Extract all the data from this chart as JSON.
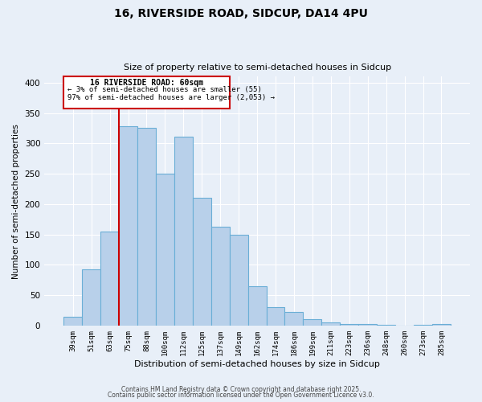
{
  "title_line1": "16, RIVERSIDE ROAD, SIDCUP, DA14 4PU",
  "title_line2": "Size of property relative to semi-detached houses in Sidcup",
  "xlabel": "Distribution of semi-detached houses by size in Sidcup",
  "ylabel": "Number of semi-detached properties",
  "categories": [
    "39sqm",
    "51sqm",
    "63sqm",
    "75sqm",
    "88sqm",
    "100sqm",
    "112sqm",
    "125sqm",
    "137sqm",
    "149sqm",
    "162sqm",
    "174sqm",
    "186sqm",
    "199sqm",
    "211sqm",
    "223sqm",
    "236sqm",
    "248sqm",
    "260sqm",
    "273sqm",
    "285sqm"
  ],
  "values": [
    15,
    93,
    155,
    328,
    325,
    250,
    311,
    210,
    163,
    150,
    65,
    30,
    22,
    10,
    5,
    2,
    2,
    1,
    0,
    1,
    3
  ],
  "bar_color": "#b8d0ea",
  "bar_edge_color": "#6aaed6",
  "bg_color": "#e8eff8",
  "grid_color": "#ffffff",
  "vline_x_index": 2,
  "vline_color": "#cc0000",
  "annotation_title": "16 RIVERSIDE ROAD: 60sqm",
  "annotation_line2": "← 3% of semi-detached houses are smaller (55)",
  "annotation_line3": "97% of semi-detached houses are larger (2,053) →",
  "annotation_box_color": "#ffffff",
  "annotation_border_color": "#cc0000",
  "footnote1": "Contains HM Land Registry data © Crown copyright and database right 2025.",
  "footnote2": "Contains public sector information licensed under the Open Government Licence v3.0.",
  "ylim": [
    0,
    410
  ],
  "yticks": [
    0,
    50,
    100,
    150,
    200,
    250,
    300,
    350,
    400
  ]
}
